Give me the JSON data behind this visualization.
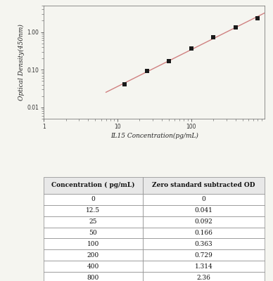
{
  "concentrations": [
    12.5,
    25,
    50,
    100,
    200,
    400,
    800
  ],
  "od_values": [
    0.041,
    0.092,
    0.166,
    0.363,
    0.729,
    1.314,
    2.36
  ],
  "xlim": [
    1,
    1000
  ],
  "ylim": [
    0.005,
    5
  ],
  "xlabel": "IL15 Concentration(pg/mL)",
  "ylabel": "Optical Density(450nm)",
  "line_color": "#d08080",
  "marker_color": "#1a1a1a",
  "marker_size": 18,
  "line_width": 1.0,
  "table_headers": [
    "Concentration ( pg/mL)",
    "Zero standard subtracted OD"
  ],
  "table_concentrations": [
    0,
    12.5,
    25,
    50,
    100,
    200,
    400,
    800
  ],
  "table_od_values": [
    0,
    0.041,
    0.092,
    0.166,
    0.363,
    0.729,
    1.314,
    2.36
  ],
  "background_color": "#f5f5f0",
  "plot_bg": "#f5f5f0",
  "label_fontsize": 6.5,
  "tick_fontsize": 5.5,
  "table_header_fontsize": 6.5,
  "table_cell_fontsize": 6.5
}
